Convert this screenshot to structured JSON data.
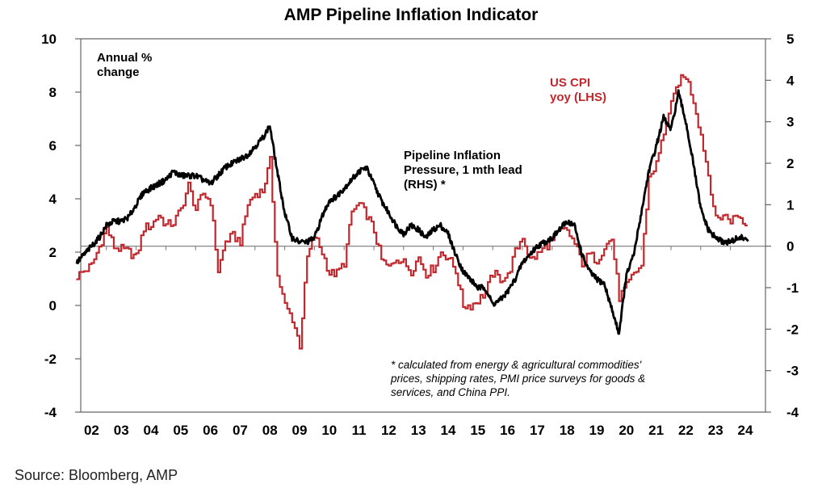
{
  "chart_data": {
    "type": "line",
    "title": "AMP Pipeline Inflation Indicator",
    "ylabel_left": "Annual % change",
    "x_ticks": [
      "02",
      "03",
      "04",
      "05",
      "06",
      "07",
      "08",
      "09",
      "10",
      "11",
      "12",
      "13",
      "14",
      "15",
      "16",
      "17",
      "18",
      "19",
      "20",
      "21",
      "22",
      "23",
      "24"
    ],
    "x_range": [
      2002.0,
      2024.75
    ],
    "y_left": {
      "range": [
        -4,
        10
      ],
      "ticks": [
        "10",
        "8",
        "6",
        "4",
        "2",
        "0",
        "-2",
        "-4"
      ],
      "values": [
        10,
        8,
        6,
        4,
        2,
        0,
        -2,
        -4
      ]
    },
    "y_right": {
      "range": [
        -4,
        5
      ],
      "ticks": [
        "5",
        "4",
        "3",
        "2",
        "1",
        "0",
        "-1",
        "-2",
        "-3",
        "-4"
      ],
      "values": [
        5,
        4,
        3,
        2,
        1,
        0,
        -1,
        -2,
        -3,
        -4
      ]
    },
    "grid": false,
    "zero_line_axis": "right",
    "series": [
      {
        "name": "US CPI yoy (LHS)",
        "label_lines": [
          "US CPI",
          "yoy (LHS)"
        ],
        "axis": "left",
        "color": "#c0282d",
        "x": [
          2002.0,
          2002.25,
          2002.5,
          2002.75,
          2003.0,
          2003.25,
          2003.5,
          2003.75,
          2004.0,
          2004.25,
          2004.5,
          2004.75,
          2005.0,
          2005.25,
          2005.5,
          2005.75,
          2006.0,
          2006.25,
          2006.5,
          2006.75,
          2007.0,
          2007.25,
          2007.5,
          2007.75,
          2008.0,
          2008.25,
          2008.5,
          2008.75,
          2009.0,
          2009.25,
          2009.5,
          2009.75,
          2010.0,
          2010.25,
          2010.5,
          2010.75,
          2011.0,
          2011.25,
          2011.5,
          2011.75,
          2012.0,
          2012.25,
          2012.5,
          2012.75,
          2013.0,
          2013.25,
          2013.5,
          2013.75,
          2014.0,
          2014.25,
          2014.5,
          2014.75,
          2015.0,
          2015.25,
          2015.5,
          2015.75,
          2016.0,
          2016.25,
          2016.5,
          2016.75,
          2017.0,
          2017.25,
          2017.5,
          2017.75,
          2018.0,
          2018.25,
          2018.5,
          2018.75,
          2019.0,
          2019.25,
          2019.5,
          2019.75,
          2020.0,
          2020.25,
          2020.5,
          2020.75,
          2021.0,
          2021.25,
          2021.5,
          2021.75,
          2022.0,
          2022.25,
          2022.5,
          2022.75,
          2023.0,
          2023.25,
          2023.5,
          2023.75,
          2024.0,
          2024.25,
          2024.5
        ],
        "y": [
          1.1,
          1.3,
          1.5,
          2.2,
          2.9,
          2.2,
          2.1,
          2.0,
          1.8,
          2.9,
          3.0,
          3.4,
          3.0,
          3.1,
          3.6,
          4.5,
          3.6,
          4.2,
          3.9,
          1.3,
          2.4,
          2.6,
          2.4,
          3.8,
          4.2,
          4.3,
          5.4,
          1.1,
          0.0,
          -0.5,
          -1.5,
          1.8,
          2.6,
          2.0,
          1.2,
          1.2,
          1.6,
          3.5,
          3.8,
          3.4,
          2.8,
          1.7,
          1.4,
          1.8,
          1.6,
          1.3,
          1.8,
          1.2,
          1.4,
          2.0,
          1.8,
          1.3,
          0.0,
          0.0,
          0.2,
          0.5,
          1.2,
          1.0,
          1.1,
          2.0,
          2.6,
          1.7,
          1.9,
          2.2,
          2.4,
          2.8,
          2.8,
          2.3,
          1.6,
          1.9,
          1.7,
          2.2,
          2.5,
          0.3,
          0.7,
          1.2,
          1.5,
          4.8,
          5.3,
          6.5,
          7.5,
          8.4,
          8.6,
          7.7,
          6.4,
          4.9,
          3.2,
          3.4,
          3.2,
          3.4,
          3.0
        ],
        "end_value": 2.9
      },
      {
        "name": "Pipeline Inflation Pressure, 1 mth lead (RHS) *",
        "label_lines": [
          "Pipeline Inflation",
          "Pressure, 1 mth lead",
          "(RHS) *"
        ],
        "axis": "right",
        "color": "#000000",
        "x": [
          2002.0,
          2002.25,
          2002.5,
          2002.75,
          2003.0,
          2003.25,
          2003.5,
          2003.75,
          2004.0,
          2004.25,
          2004.5,
          2004.75,
          2005.0,
          2005.25,
          2005.5,
          2005.75,
          2006.0,
          2006.25,
          2006.5,
          2006.75,
          2007.0,
          2007.25,
          2007.5,
          2007.75,
          2008.0,
          2008.25,
          2008.5,
          2008.75,
          2009.0,
          2009.25,
          2009.5,
          2009.75,
          2010.0,
          2010.25,
          2010.5,
          2010.75,
          2011.0,
          2011.25,
          2011.5,
          2011.75,
          2012.0,
          2012.25,
          2012.5,
          2012.75,
          2013.0,
          2013.25,
          2013.5,
          2013.75,
          2014.0,
          2014.25,
          2014.5,
          2014.75,
          2015.0,
          2015.25,
          2015.5,
          2015.75,
          2016.0,
          2016.25,
          2016.5,
          2016.75,
          2017.0,
          2017.25,
          2017.5,
          2017.75,
          2018.0,
          2018.25,
          2018.5,
          2018.75,
          2019.0,
          2019.25,
          2019.5,
          2019.75,
          2020.0,
          2020.25,
          2020.5,
          2020.75,
          2021.0,
          2021.25,
          2021.5,
          2021.75,
          2022.0,
          2022.25,
          2022.5,
          2022.75,
          2023.0,
          2023.25,
          2023.5,
          2023.75,
          2024.0,
          2024.25,
          2024.5
        ],
        "y": [
          -0.4,
          -0.2,
          0.0,
          0.2,
          0.5,
          0.6,
          0.6,
          0.7,
          1.0,
          1.3,
          1.4,
          1.5,
          1.6,
          1.8,
          1.7,
          1.7,
          1.7,
          1.6,
          1.5,
          1.7,
          1.9,
          2.0,
          2.1,
          2.2,
          2.4,
          2.6,
          2.9,
          1.8,
          0.8,
          0.2,
          0.1,
          0.1,
          0.2,
          0.7,
          1.1,
          1.2,
          1.4,
          1.6,
          1.8,
          1.9,
          1.5,
          1.1,
          0.8,
          0.5,
          0.3,
          0.5,
          0.4,
          0.2,
          0.4,
          0.5,
          0.3,
          -0.2,
          -0.6,
          -0.8,
          -1.0,
          -1.0,
          -1.4,
          -1.3,
          -1.1,
          -0.8,
          -0.4,
          -0.2,
          0.0,
          0.1,
          0.2,
          0.4,
          0.6,
          0.5,
          -0.2,
          -0.6,
          -0.8,
          -0.9,
          -1.5,
          -2.1,
          -0.7,
          -0.2,
          0.8,
          1.8,
          2.4,
          3.1,
          2.8,
          3.7,
          3.0,
          2.0,
          0.9,
          0.4,
          0.2,
          0.1,
          0.1,
          0.2,
          0.2
        ],
        "end_value": 0.2
      }
    ],
    "annotations": {
      "left_axis_label_lines": [
        "Annual %",
        "change"
      ],
      "footnote_lines": [
        "* calculated from energy & agricultural commodities'",
        "prices, shipping rates, PMI price surveys for goods &",
        "services, and China PPI."
      ]
    }
  },
  "source": "Source: Bloomberg, AMP"
}
